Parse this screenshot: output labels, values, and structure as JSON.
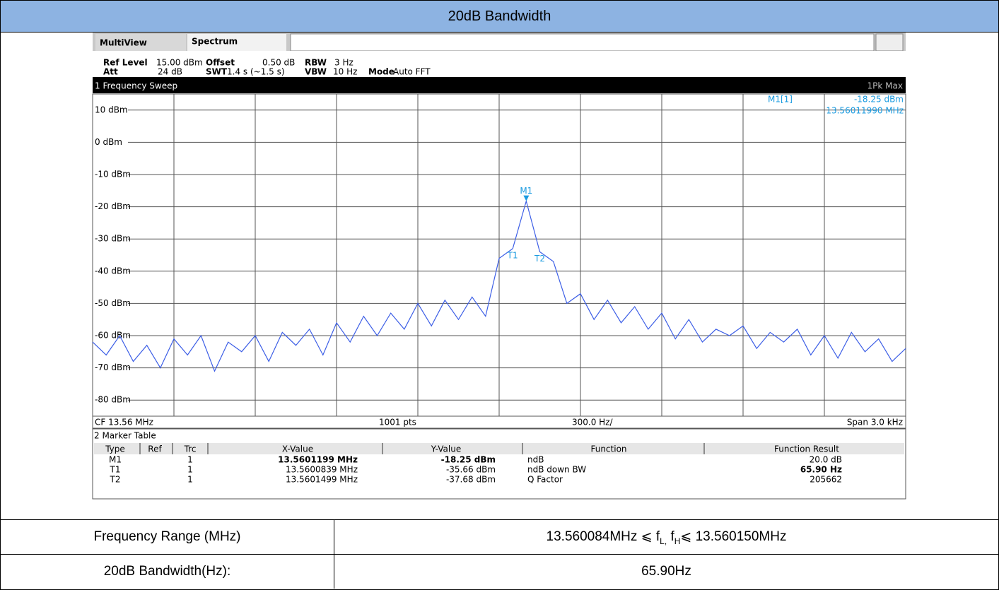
{
  "header": {
    "title": "20dB Bandwidth"
  },
  "analyzer": {
    "tabs": [
      "MultiView",
      "Spectrum"
    ],
    "settings_row1": [
      "Ref Level",
      "15.00 dBm",
      "Offset",
      "0.50 dB",
      "RBW",
      "3 Hz"
    ],
    "settings_row2": [
      "Att",
      "24 dB",
      "SWT",
      "1.4 s (~1.5 s)",
      "VBW",
      "10 Hz",
      "Mode",
      "Auto FFT"
    ],
    "plot_title": "1 Frequency Sweep",
    "trace_label": "1Pk Max",
    "marker_info": [
      "M1[1]",
      "-18.25 dBm",
      "13.56011990 MHz"
    ],
    "marker_labels": [
      "M1",
      "T1",
      "T2"
    ],
    "footer": [
      "CF 13.56 MHz",
      "1001 pts",
      "300.0 Hz/",
      "Span 3.0 kHz"
    ],
    "chart": {
      "type": "line",
      "ylim": [
        -85,
        15
      ],
      "yticks": [
        {
          "value": 10,
          "label": "10 dBm"
        },
        {
          "value": 0,
          "label": "0 dBm"
        },
        {
          "value": -10,
          "label": "-10 dBm"
        },
        {
          "value": -20,
          "label": "-20 dBm"
        },
        {
          "value": -30,
          "label": "-30 dBm"
        },
        {
          "value": -40,
          "label": "-40 dBm"
        },
        {
          "value": -50,
          "label": "-50 dBm"
        },
        {
          "value": -60,
          "label": "-60 dBm"
        },
        {
          "value": -70,
          "label": "-70 dBm"
        },
        {
          "value": -80,
          "label": "-80 dBm"
        }
      ],
      "color": "#3c5ee6",
      "trace": [
        -62,
        -66,
        -60,
        -68,
        -63,
        -70,
        -61,
        -66,
        -60,
        -71,
        -62,
        -65,
        -60,
        -68,
        -59,
        -63,
        -58,
        -66,
        -56,
        -62,
        -54,
        -60,
        -53,
        -58,
        -50,
        -57,
        -49,
        -55,
        -48,
        -54,
        -36,
        -33,
        -18.25,
        -34,
        -37,
        -50,
        -47,
        -55,
        -49,
        -56,
        -51,
        -58,
        -53,
        -61,
        -55,
        -62,
        -58,
        -60,
        -57,
        -64,
        -59,
        -62,
        -58,
        -66,
        -60,
        -67,
        -59,
        -65,
        -61,
        -68,
        -64
      ]
    },
    "marker_table": {
      "title": "2 Marker Table",
      "columns": [
        "Type",
        "Ref",
        "Trc",
        "X-Value",
        "Y-Value",
        "Function",
        "Function Result"
      ],
      "rows": [
        [
          "M1",
          "",
          "1",
          "13.5601199 MHz",
          "-18.25 dBm",
          "ndB",
          "20.0 dB"
        ],
        [
          "T1",
          "",
          "1",
          "13.5600839 MHz",
          "-35.66 dBm",
          "ndB down BW",
          "65.90 Hz"
        ],
        [
          "T2",
          "",
          "1",
          "13.5601499 MHz",
          "-37.68 dBm",
          "Q Factor",
          "205662"
        ]
      ]
    }
  },
  "results": {
    "rows": [
      {
        "label": "Frequency Range (MHz)",
        "value_parts": [
          "13.560084MHz ⩽ f",
          "L,",
          " f",
          "H",
          "⩽ 13.560150MHz"
        ]
      },
      {
        "label": "20dB Bandwidth(Hz):",
        "value": "65.90Hz"
      }
    ]
  }
}
